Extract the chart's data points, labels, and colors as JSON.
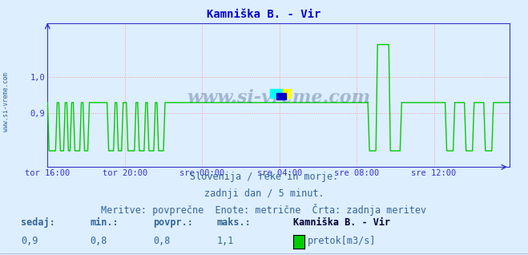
{
  "title": "Kamniška B. - Vir",
  "title_color": "#0000cc",
  "title_fontsize": 10,
  "bg_color": "#ddeeff",
  "plot_bg_color": "#ddeeff",
  "yticks": [
    0.9,
    1.0
  ],
  "ylim": [
    0.75,
    1.15
  ],
  "xlim": [
    0,
    287
  ],
  "xtick_labels": [
    "tor 16:00",
    "tor 20:00",
    "sre 00:00",
    "sre 04:00",
    "sre 08:00",
    "sre 12:00"
  ],
  "xtick_positions": [
    0,
    48,
    96,
    144,
    192,
    240
  ],
  "grid_color": "#ff9999",
  "axis_color": "#3333cc",
  "watermark": "www.si-vreme.com",
  "watermark_color": "#1a3a6a",
  "subtitle1": "Slovenija / reke in morje.",
  "subtitle2": "zadnji dan / 5 minut.",
  "subtitle3": "Meritve: povprečne  Enote: metrične  Črta: zadnja meritev",
  "subtitle_color": "#336699",
  "subtitle_fontsize": 8.5,
  "legend_title": "Kamniška B. - Vir",
  "legend_label": "pretok[m3/s]",
  "stat_labels": [
    "sedaj:",
    "min.:",
    "povpr.:",
    "maks.:"
  ],
  "stat_values": [
    "0,9",
    "0,8",
    "0,8",
    "1,1"
  ],
  "stat_color": "#336699",
  "line_color": "#00cc00",
  "line_width": 1.0,
  "n_points": 288,
  "base_value": 0.929,
  "low_value": 0.795,
  "spike_value": 1.09
}
